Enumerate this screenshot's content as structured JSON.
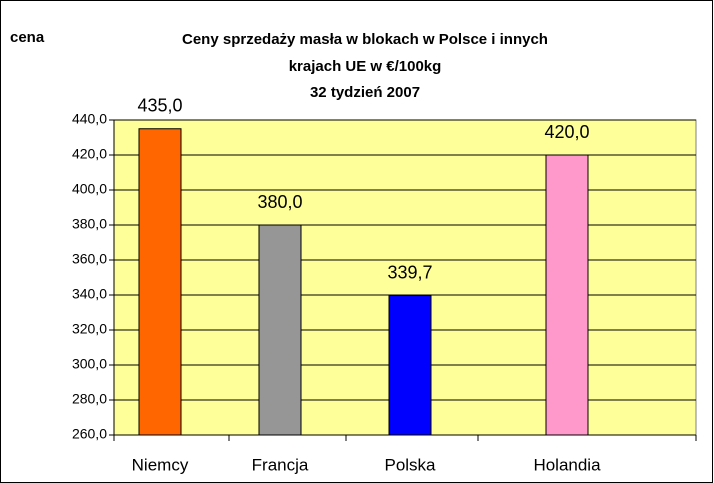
{
  "chart_data": {
    "type": "bar",
    "title": [
      "Ceny sprzedaży masła w blokach w Polsce i  innych",
      "krajach UE w €/100kg"
    ],
    "subtitle": "32 tydzień 2007",
    "y_label": "cena",
    "categories": [
      "Niemcy",
      "Francja",
      "Polska",
      "Holandia"
    ],
    "values": [
      435,
      380,
      339.7,
      420
    ],
    "value_labels": [
      "435,0",
      "380,0",
      "339,7",
      "420,0"
    ],
    "colors": [
      "#ff6600",
      "#969696",
      "#0000ff",
      "#ff99cc"
    ],
    "plot_background": "#ffff99",
    "ylim": [
      260,
      440
    ],
    "yticks": [
      {
        "value": 260,
        "label": "260,0"
      },
      {
        "value": 280,
        "label": "280,0"
      },
      {
        "value": 300,
        "label": "300,0"
      },
      {
        "value": 320,
        "label": "320,0"
      },
      {
        "value": 340,
        "label": "340,0"
      },
      {
        "value": 360,
        "label": "360,0"
      },
      {
        "value": 380,
        "label": "380,0"
      },
      {
        "value": 400,
        "label": "400,0"
      },
      {
        "value": 420,
        "label": "420,0"
      },
      {
        "value": 440,
        "label": "440,0"
      }
    ],
    "grid": true
  }
}
